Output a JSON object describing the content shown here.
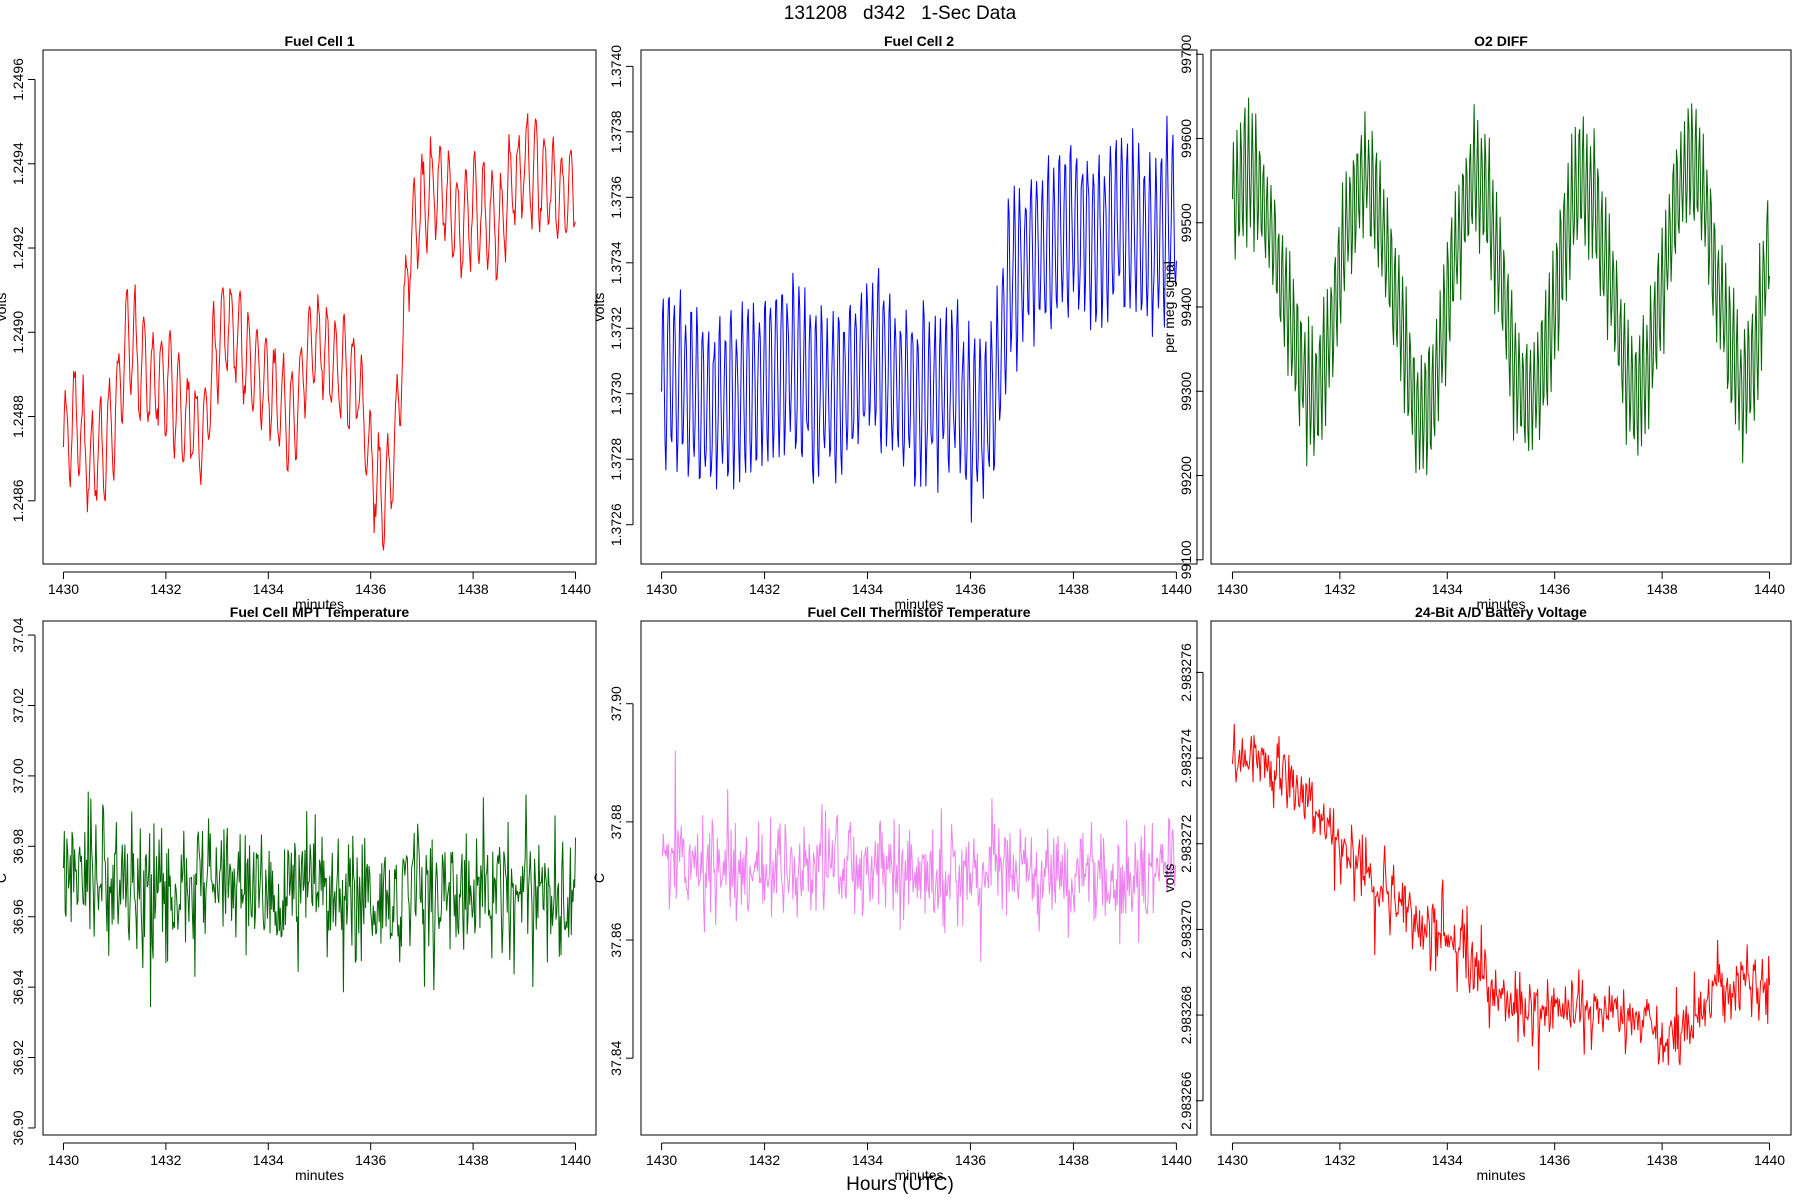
{
  "figure": {
    "title": "131208   d342   1-Sec Data",
    "bottom_label": "Hours (UTC)"
  },
  "chart_data": [
    {
      "type": "line",
      "title": "Fuel Cell 1",
      "xlabel": "minutes",
      "ylabel": "volts",
      "color": "#ff0000",
      "xlim": [
        1429.6,
        1440.4
      ],
      "ylim": [
        1.24845,
        1.24967
      ],
      "x_ticks": [
        1430,
        1432,
        1434,
        1436,
        1438,
        1440
      ],
      "x_tick_labels": [
        "1430",
        "1432",
        "1434",
        "1436",
        "1438",
        "1440"
      ],
      "y_ticks": [
        1.2486,
        1.2488,
        1.249,
        1.2492,
        1.2494,
        1.2496
      ],
      "y_tick_labels": [
        "1.2486",
        "1.2488",
        "1.2490",
        "1.2492",
        "1.2494",
        "1.2496"
      ],
      "series": [
        {
          "x": [
            1430,
            1430.25,
            1430.5,
            1430.75,
            1431,
            1431.25,
            1431.5,
            1431.75,
            1432,
            1432.25,
            1432.5,
            1432.75,
            1433,
            1433.25,
            1433.5,
            1433.75,
            1434,
            1434.25,
            1434.5,
            1434.75,
            1435,
            1435.25,
            1435.5,
            1435.75,
            1436,
            1436.25,
            1436.5,
            1436.75,
            1437,
            1437.25,
            1437.5,
            1437.75,
            1438,
            1438.25,
            1438.5,
            1438.75,
            1439,
            1439.25,
            1439.5,
            1439.75,
            1440
          ],
          "values": [
            1.24874,
            1.2488,
            1.24868,
            1.24872,
            1.2488,
            1.249,
            1.24892,
            1.24888,
            1.2489,
            1.24883,
            1.24878,
            1.24876,
            1.24898,
            1.24902,
            1.24895,
            1.2489,
            1.24888,
            1.24882,
            1.2488,
            1.24895,
            1.24898,
            1.24893,
            1.2489,
            1.24888,
            1.24868,
            1.2486,
            1.24875,
            1.2492,
            1.2493,
            1.24935,
            1.24932,
            1.24925,
            1.2493,
            1.24928,
            1.24925,
            1.24935,
            1.2494,
            1.24938,
            1.24935,
            1.24932,
            1.24935
          ],
          "wave_amplitude": 0.00012,
          "wave_period_min": 0.17
        }
      ]
    },
    {
      "type": "line",
      "title": "Fuel Cell 2",
      "xlabel": "minutes",
      "ylabel": "volts",
      "color": "#0000ff",
      "xlim": [
        1429.6,
        1440.4
      ],
      "ylim": [
        1.37248,
        1.37405
      ],
      "x_ticks": [
        1430,
        1432,
        1434,
        1436,
        1438,
        1440
      ],
      "x_tick_labels": [
        "1430",
        "1432",
        "1434",
        "1436",
        "1438",
        "1440"
      ],
      "y_ticks": [
        1.3726,
        1.3728,
        1.373,
        1.3732,
        1.3734,
        1.3736,
        1.3738,
        1.374
      ],
      "y_tick_labels": [
        "1.3726",
        "1.3728",
        "1.3730",
        "1.3732",
        "1.3734",
        "1.3736",
        "1.3738",
        "1.3740"
      ],
      "series": [
        {
          "x": [
            1430,
            1430.25,
            1430.5,
            1430.75,
            1431,
            1431.25,
            1431.5,
            1431.75,
            1432,
            1432.25,
            1432.5,
            1432.75,
            1433,
            1433.25,
            1433.5,
            1433.75,
            1434,
            1434.25,
            1434.5,
            1434.75,
            1435,
            1435.25,
            1435.5,
            1435.75,
            1436,
            1436.25,
            1436.5,
            1436.75,
            1437,
            1437.25,
            1437.5,
            1437.75,
            1438,
            1438.25,
            1438.5,
            1438.75,
            1439,
            1439.25,
            1439.5,
            1439.75,
            1440
          ],
          "values": [
            1.37305,
            1.37305,
            1.373,
            1.37298,
            1.37295,
            1.37298,
            1.373,
            1.37303,
            1.37305,
            1.37308,
            1.3731,
            1.37305,
            1.373,
            1.37298,
            1.373,
            1.37305,
            1.37312,
            1.3731,
            1.37305,
            1.373,
            1.37298,
            1.373,
            1.37302,
            1.373,
            1.37292,
            1.3729,
            1.373,
            1.37335,
            1.37342,
            1.37345,
            1.37345,
            1.37348,
            1.3735,
            1.37352,
            1.37348,
            1.3735,
            1.37352,
            1.3735,
            1.37345,
            1.3735,
            1.37355
          ],
          "wave_amplitude": 0.00025,
          "wave_period_min": 0.11
        }
      ]
    },
    {
      "type": "line",
      "title": "O2 DIFF",
      "xlabel": "minutes",
      "ylabel": "per meg signal",
      "color": "#006400",
      "xlim": [
        1429.6,
        1440.4
      ],
      "ylim": [
        99095,
        99705
      ],
      "x_ticks": [
        1430,
        1432,
        1434,
        1436,
        1438,
        1440
      ],
      "x_tick_labels": [
        "1430",
        "1432",
        "1434",
        "1436",
        "1438",
        "1440"
      ],
      "y_ticks": [
        99100,
        99200,
        99300,
        99400,
        99500,
        99600,
        99700
      ],
      "y_tick_labels": [
        "99100",
        "99200",
        "99300",
        "99400",
        "99500",
        "99600",
        "99700"
      ],
      "series": [
        {
          "x": [
            1430,
            1430.25,
            1430.5,
            1430.75,
            1431,
            1431.25,
            1431.5,
            1431.75,
            1432,
            1432.25,
            1432.5,
            1432.75,
            1433,
            1433.25,
            1433.5,
            1433.75,
            1434,
            1434.25,
            1434.5,
            1434.75,
            1435,
            1435.25,
            1435.5,
            1435.75,
            1436,
            1436.25,
            1436.5,
            1436.75,
            1437,
            1437.25,
            1437.5,
            1437.75,
            1438,
            1438.25,
            1438.5,
            1438.75,
            1439,
            1439.25,
            1439.5,
            1439.75,
            1440
          ],
          "values": [
            99520,
            99560,
            99540,
            99480,
            99400,
            99330,
            99290,
            99340,
            99450,
            99520,
            99560,
            99500,
            99420,
            99340,
            99260,
            99300,
            99400,
            99500,
            99560,
            99530,
            99430,
            99330,
            99280,
            99320,
            99400,
            99500,
            99550,
            99520,
            99440,
            99350,
            99290,
            99330,
            99420,
            99520,
            99580,
            99540,
            99440,
            99350,
            99300,
            99350,
            99480
          ],
          "wave_amplitude": 75,
          "wave_period_min": 0.07
        }
      ]
    },
    {
      "type": "line",
      "title": "Fuel Cell MPT Temperature",
      "xlabel": "minutes",
      "ylabel": "C",
      "color": "#006400",
      "xlim": [
        1429.6,
        1440.4
      ],
      "ylim": [
        36.898,
        37.044
      ],
      "x_ticks": [
        1430,
        1432,
        1434,
        1436,
        1438,
        1440
      ],
      "x_tick_labels": [
        "1430",
        "1432",
        "1434",
        "1436",
        "1438",
        "1440"
      ],
      "y_ticks": [
        36.9,
        36.92,
        36.94,
        36.96,
        36.98,
        37.0,
        37.02,
        37.04
      ],
      "y_tick_labels": [
        "36.90",
        "36.92",
        "36.94",
        "36.96",
        "36.98",
        "37.00",
        "37.02",
        "37.04"
      ],
      "series": [
        {
          "x": [
            1430,
            1431,
            1432,
            1433,
            1434,
            1435,
            1436,
            1437,
            1438,
            1439,
            1440
          ],
          "values": [
            36.97,
            36.97,
            36.966,
            36.97,
            36.965,
            36.97,
            36.962,
            36.968,
            36.965,
            36.97,
            36.965
          ],
          "noise_amplitude": 0.026,
          "noise_period_min": 0.025
        }
      ]
    },
    {
      "type": "line",
      "title": "Fuel Cell Thermistor Temperature",
      "xlabel": "minutes",
      "ylabel": "C",
      "color": "#ee82ee",
      "xlim": [
        1429.6,
        1440.4
      ],
      "ylim": [
        37.827,
        37.914
      ],
      "x_ticks": [
        1430,
        1432,
        1434,
        1436,
        1438,
        1440
      ],
      "x_tick_labels": [
        "1430",
        "1432",
        "1434",
        "1436",
        "1438",
        "1440"
      ],
      "y_ticks": [
        37.84,
        37.86,
        37.88,
        37.9
      ],
      "y_tick_labels": [
        "37.84",
        "37.86",
        "37.88",
        "37.90"
      ],
      "series": [
        {
          "x": [
            1430,
            1431,
            1432,
            1433,
            1434,
            1435,
            1436,
            1437,
            1438,
            1439,
            1440
          ],
          "values": [
            37.874,
            37.873,
            37.872,
            37.873,
            37.872,
            37.871,
            37.871,
            37.872,
            37.87,
            37.87,
            37.872
          ],
          "noise_amplitude": 0.012,
          "noise_period_min": 0.025
        }
      ]
    },
    {
      "type": "line",
      "title": "24-Bit A/D Battery Voltage",
      "xlabel": "minutes",
      "ylabel": "volts",
      "color": "#ff0000",
      "xlim": [
        1429.6,
        1440.4
      ],
      "ylim": [
        2.9832652,
        2.9832772
      ],
      "x_ticks": [
        1430,
        1432,
        1434,
        1436,
        1438,
        1440
      ],
      "x_tick_labels": [
        "1430",
        "1432",
        "1434",
        "1436",
        "1438",
        "1440"
      ],
      "y_ticks": [
        2.983266,
        2.983268,
        2.98327,
        2.983272,
        2.983274,
        2.983276
      ],
      "y_tick_labels": [
        "2.983266",
        "2.983268",
        "2.983270",
        "2.983272",
        "2.983274",
        "2.983276"
      ],
      "series": [
        {
          "x": [
            1430,
            1430.5,
            1431,
            1431.5,
            1432,
            1432.5,
            1433,
            1433.5,
            1434,
            1434.5,
            1435,
            1435.5,
            1436,
            1436.5,
            1437,
            1437.5,
            1438,
            1438.5,
            1439,
            1439.5,
            1440
          ],
          "values": [
            2.983274,
            2.9832742,
            2.9832735,
            2.9832728,
            2.983272,
            2.9832712,
            2.9832708,
            2.98327,
            2.9832698,
            2.983269,
            2.9832684,
            2.9832682,
            2.9832681,
            2.9832682,
            2.983268,
            2.983268,
            2.9832674,
            2.9832678,
            2.9832685,
            2.9832688,
            2.9832686
          ],
          "noise_amplitude": 1.2e-06,
          "noise_period_min": 0.025
        }
      ]
    }
  ]
}
